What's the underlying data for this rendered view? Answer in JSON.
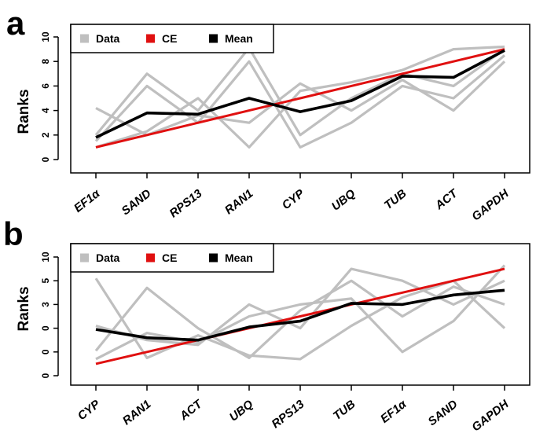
{
  "colors": {
    "data": "#bfbfbf",
    "ce": "#e01010",
    "mean": "#000000",
    "frame": "#000000"
  },
  "chart_data": [
    {
      "type": "line",
      "panel_label": "a",
      "ylabel": "Ranks",
      "xlabel": "",
      "y_tick_labels": [
        "0",
        "2",
        "4",
        "6",
        "8",
        "10"
      ],
      "ylim": [
        0,
        10
      ],
      "grid": false,
      "legend_position": "top-left",
      "legend": [
        "Data",
        "CE",
        "Mean"
      ],
      "categories": [
        "EF1α",
        "SAND",
        "RPS13",
        "RAN1",
        "CYP",
        "UBQ",
        "TUB",
        "ACT",
        "GAPDH"
      ],
      "data_series": [
        [
          4.2,
          2.0,
          3.6,
          3.0,
          6.2,
          4.0,
          6.5,
          4.0,
          8.0
        ],
        [
          2.0,
          7.0,
          4.0,
          9.1,
          2.0,
          5.0,
          7.0,
          6.0,
          9.0
        ],
        [
          1.5,
          6.0,
          3.0,
          8.0,
          1.0,
          3.0,
          6.0,
          5.0,
          8.5
        ],
        [
          1.0,
          2.3,
          5.0,
          1.0,
          5.6,
          6.3,
          7.3,
          9.0,
          9.2
        ]
      ],
      "ce_values": [
        1,
        2,
        3,
        4,
        5,
        6,
        7,
        8,
        9
      ],
      "mean_values": [
        1.8,
        3.8,
        3.7,
        5.0,
        3.9,
        4.8,
        6.8,
        6.7,
        8.9
      ]
    },
    {
      "type": "line",
      "panel_label": "b",
      "ylabel": "Ranks",
      "xlabel": "",
      "y_tick_labels": [
        "0",
        "0",
        "0",
        "3",
        "5",
        "10"
      ],
      "ylim": [
        0,
        10
      ],
      "grid": false,
      "legend_position": "top-left",
      "legend": [
        "Data",
        "CE",
        "Mean"
      ],
      "categories": [
        "CYP",
        "RAN1",
        "ACT",
        "UBQ",
        "RPS13",
        "TUB",
        "EF1α",
        "SAND",
        "GAPDH"
      ],
      "data_series": [
        [
          8.2,
          1.5,
          3.4,
          1.7,
          1.4,
          4.2,
          6.6,
          8.0,
          4.0
        ],
        [
          2.1,
          7.4,
          4.0,
          1.5,
          5.5,
          8.0,
          5.0,
          7.5,
          6.0
        ],
        [
          1.4,
          3.6,
          2.8,
          5.0,
          6.0,
          6.5,
          2.0,
          4.6,
          9.3
        ],
        [
          4.2,
          3.0,
          2.6,
          6.0,
          4.0,
          9.0,
          8.0,
          6.0,
          8.0
        ]
      ],
      "ce_values": [
        1,
        2,
        3,
        4,
        5,
        6,
        7,
        8,
        9
      ],
      "mean_values": [
        3.9,
        3.2,
        3.0,
        4.1,
        4.6,
        6.1,
        6.0,
        6.8,
        7.2
      ]
    }
  ]
}
